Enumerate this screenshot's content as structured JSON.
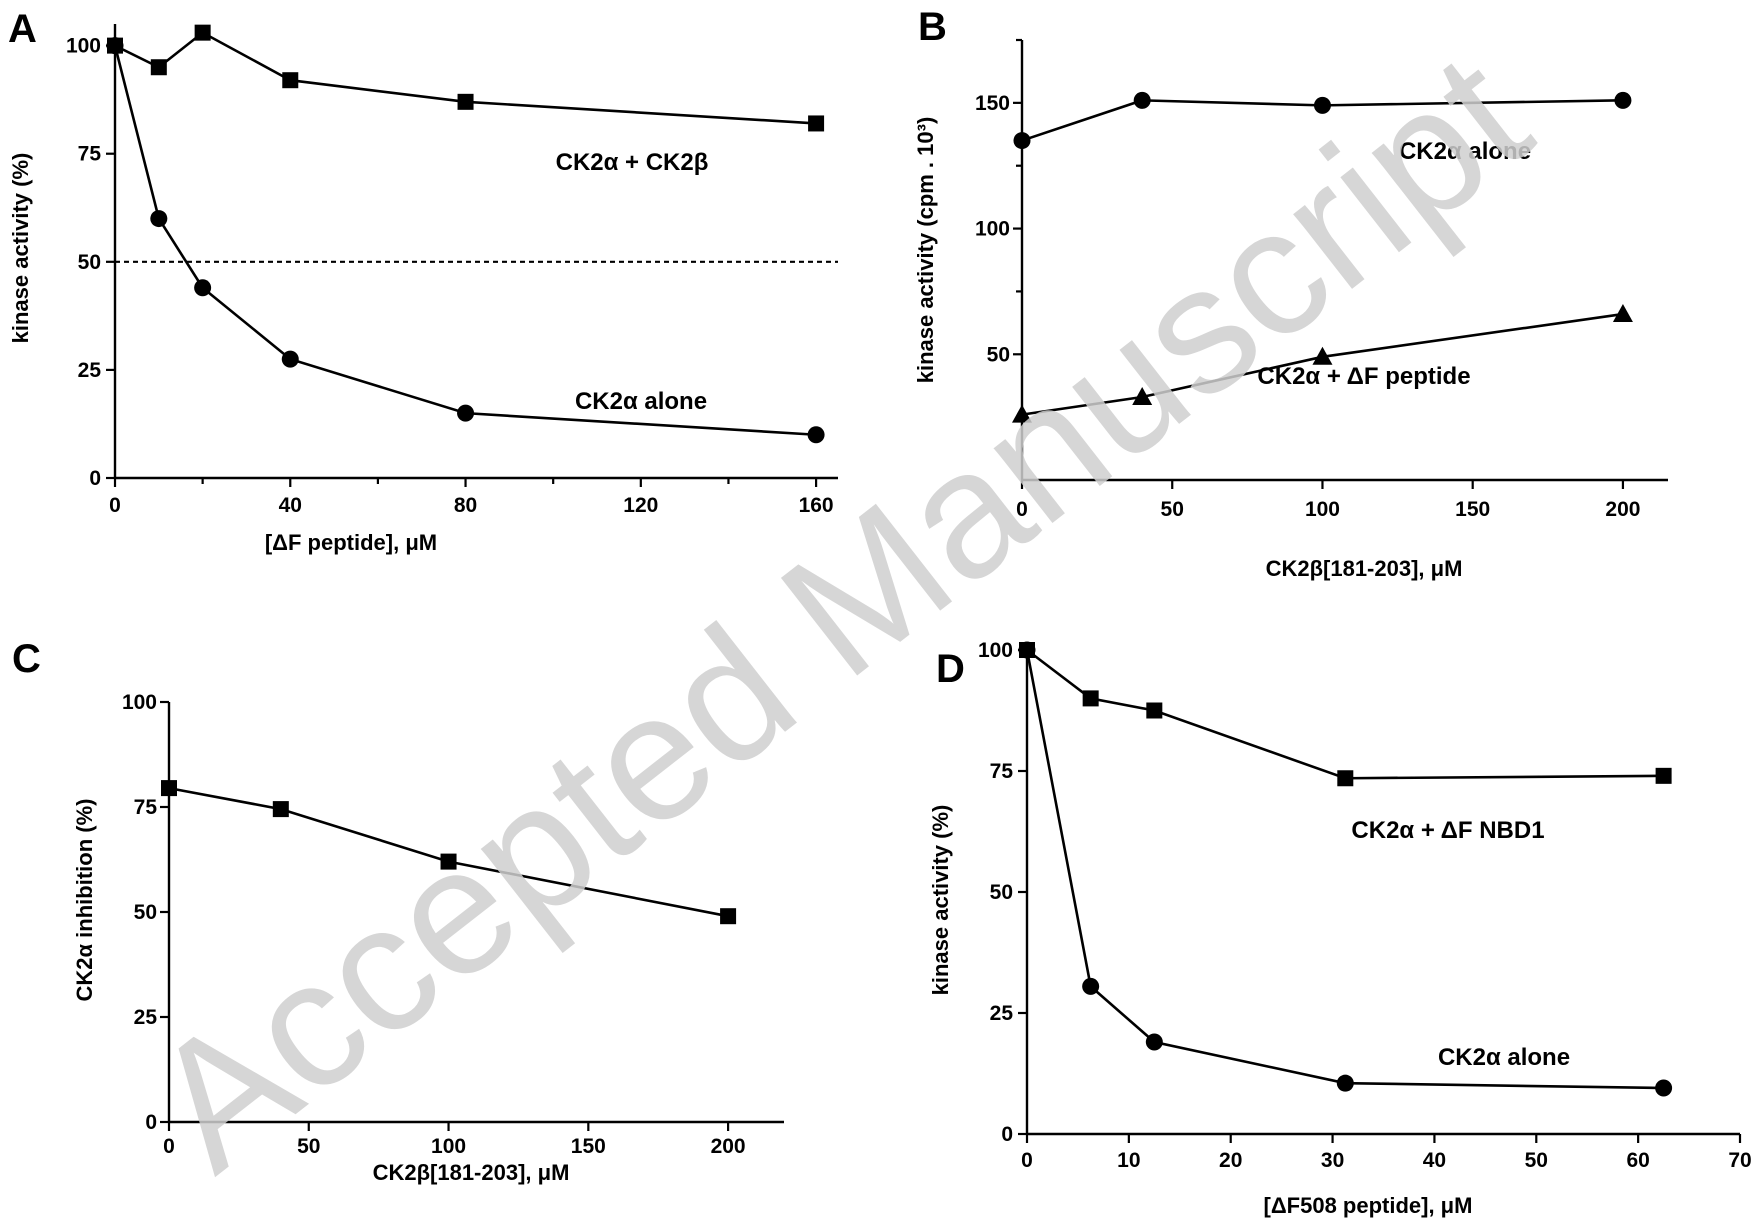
{
  "watermark": "Accepted Manuscript",
  "chart_data": [
    {
      "panel": "A",
      "type": "line",
      "xlabel": "[ΔF peptide], μM",
      "ylabel": "kinase activity (%)",
      "xlim": [
        0,
        165
      ],
      "ylim": [
        0,
        105
      ],
      "xticks": [
        0,
        40,
        80,
        120,
        160
      ],
      "xminor": [
        20,
        60,
        100,
        140
      ],
      "yticks": [
        0,
        25,
        50,
        75,
        100
      ],
      "reference_y": 50,
      "series": [
        {
          "name": "CK2α + CK2β",
          "marker": "square",
          "x": [
            0,
            10,
            20,
            40,
            80,
            160
          ],
          "y": [
            100,
            95,
            103,
            92,
            87,
            82
          ]
        },
        {
          "name": "CK2α alone",
          "marker": "circle",
          "x": [
            0,
            10,
            20,
            40,
            80,
            160
          ],
          "y": [
            100,
            60,
            44,
            27.5,
            15,
            10
          ]
        }
      ]
    },
    {
      "panel": "B",
      "type": "line",
      "xlabel": "CK2β[181-203], μM",
      "ylabel": "kinase activity (cpm . 10³)",
      "xlim": [
        0,
        215
      ],
      "ylim": [
        0,
        175
      ],
      "xticks": [
        0,
        50,
        100,
        150,
        200
      ],
      "yticks": [
        50,
        100,
        150
      ],
      "yminor": [
        25,
        75,
        125,
        175
      ],
      "series": [
        {
          "name": "CK2α alone",
          "marker": "circle",
          "x": [
            0,
            40,
            100,
            200
          ],
          "y": [
            135,
            151,
            149,
            151
          ]
        },
        {
          "name": "CK2α + ΔF peptide",
          "marker": "triangle",
          "x": [
            0,
            40,
            100,
            200
          ],
          "y": [
            26,
            33,
            49,
            66
          ]
        }
      ]
    },
    {
      "panel": "C",
      "type": "line",
      "xlabel": "CK2β[181-203], μM",
      "ylabel": "CK2α inhibition (%)",
      "xlim": [
        0,
        220
      ],
      "ylim": [
        0,
        100
      ],
      "xticks": [
        0,
        50,
        100,
        150,
        200
      ],
      "yticks": [
        0,
        25,
        50,
        75,
        100
      ],
      "series": [
        {
          "name": "",
          "marker": "square",
          "x": [
            0,
            40,
            100,
            200
          ],
          "y": [
            79.5,
            74.5,
            62,
            49
          ]
        }
      ]
    },
    {
      "panel": "D",
      "type": "line",
      "xlabel": "[ΔF508 peptide], μM",
      "ylabel": "kinase activity (%)",
      "xlim": [
        0,
        70
      ],
      "ylim": [
        0,
        100
      ],
      "xticks": [
        0,
        10,
        20,
        30,
        40,
        50,
        60,
        70
      ],
      "yticks": [
        0,
        25,
        50,
        75,
        100
      ],
      "series": [
        {
          "name": "CK2α + ΔF NBD1",
          "marker": "square",
          "x": [
            0,
            6.25,
            12.5,
            31.25,
            62.5
          ],
          "y": [
            100,
            90,
            87.5,
            73.5,
            74
          ]
        },
        {
          "name": "CK2α alone",
          "marker": "circle",
          "x": [
            0,
            6.25,
            12.5,
            31.25,
            62.5
          ],
          "y": [
            100,
            30.5,
            19,
            10.5,
            9.5
          ]
        }
      ]
    }
  ]
}
